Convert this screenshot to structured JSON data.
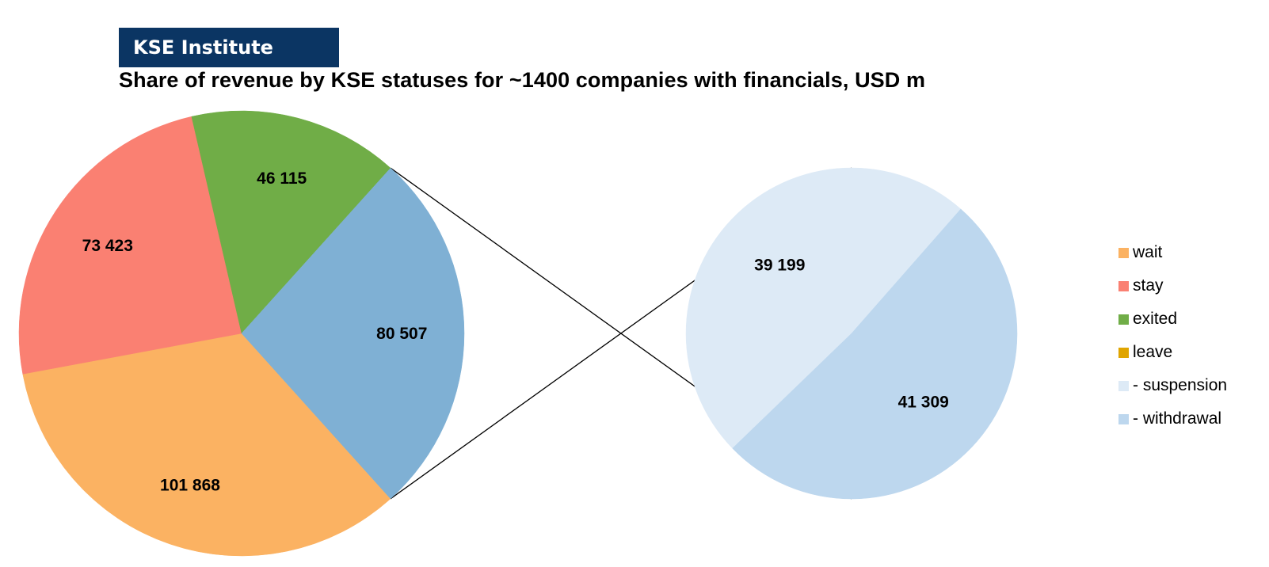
{
  "brand": {
    "label": "KSE Institute",
    "color": "#0b3563"
  },
  "chart_data": {
    "type": "pie",
    "title": "Share of revenue by KSE statuses for ~1400 companies with financials, USD m",
    "slices": [
      {
        "name": "wait",
        "value": 101868,
        "label": "101 868",
        "color": "#fbb262"
      },
      {
        "name": "stay",
        "value": 73423,
        "label": "73 423",
        "color": "#fa8072"
      },
      {
        "name": "exited",
        "value": 46115,
        "label": "46 115",
        "color": "#70ad47"
      },
      {
        "name": "leave",
        "value": 80507,
        "label": "80 507",
        "color": "#7fb0d4"
      }
    ],
    "breakdown_of": "leave",
    "breakdown": [
      {
        "name": "- suspension",
        "value": 39199,
        "label": "39 199",
        "color": "#ddeaf6"
      },
      {
        "name": "- withdrawal",
        "value": 41309,
        "label": "41 309",
        "color": "#bdd7ee"
      }
    ],
    "legend": [
      {
        "label": "wait",
        "color": "#fbb262"
      },
      {
        "label": "stay",
        "color": "#fa8072"
      },
      {
        "label": "exited",
        "color": "#70ad47"
      },
      {
        "label": "leave",
        "color": "#e0a500"
      },
      {
        "label": "- suspension",
        "color": "#ddeaf6"
      },
      {
        "label": "- withdrawal",
        "color": "#bdd7ee"
      }
    ],
    "legend_position": "right"
  }
}
